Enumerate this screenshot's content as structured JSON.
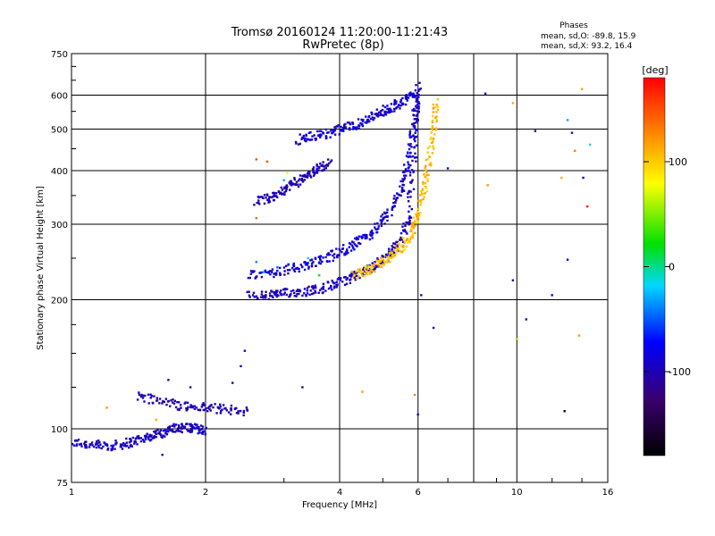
{
  "chart_data": {
    "type": "scatter",
    "title": "Tromsø 20160124 11:20:00-11:21:43",
    "subtitle": "RwPretec (8p)",
    "xlabel": "Frequency [MHz]",
    "ylabel": "Stationary phase Virtual Height [km]",
    "x_scale": "log",
    "y_scale": "log",
    "xlim": [
      1,
      16
    ],
    "ylim": [
      75,
      750
    ],
    "x_ticks": [
      "1",
      "2",
      "4",
      "6",
      "10",
      "16"
    ],
    "y_ticks": [
      "75",
      "100",
      "200",
      "300",
      "400",
      "500",
      "600",
      "750"
    ],
    "grid": true,
    "phase_stats": {
      "heading": "Phases",
      "line_o": "mean, sd,O: -89.8, 15.9",
      "line_x": "mean, sd,X:  93.2, 16.4"
    },
    "colorbar": {
      "label": "[deg]",
      "range": [
        -180,
        180
      ],
      "ticks": [
        "100",
        "0",
        "-100"
      ],
      "tick_values": [
        100,
        0,
        -100
      ]
    },
    "traces": [
      {
        "id": "E-layer",
        "phase": -95,
        "points": [
          [
            1.0,
            93
          ],
          [
            1.1,
            92
          ],
          [
            1.2,
            91
          ],
          [
            1.3,
            92
          ],
          [
            1.4,
            94
          ],
          [
            1.5,
            96
          ],
          [
            1.6,
            98
          ],
          [
            1.7,
            100
          ],
          [
            1.8,
            101
          ],
          [
            1.9,
            100
          ],
          [
            2.0,
            99
          ]
        ]
      },
      {
        "id": "Es",
        "phase": -100,
        "points": [
          [
            1.4,
            120
          ],
          [
            1.6,
            116
          ],
          [
            1.8,
            113
          ],
          [
            2.0,
            112
          ],
          [
            2.2,
            111
          ],
          [
            2.5,
            110
          ]
        ]
      },
      {
        "id": "F1-O",
        "phase": -95,
        "points": [
          [
            2.5,
            204
          ],
          [
            2.8,
            205
          ],
          [
            3.0,
            207
          ],
          [
            3.3,
            209
          ],
          [
            3.6,
            212
          ],
          [
            3.9,
            217
          ],
          [
            4.2,
            224
          ],
          [
            4.5,
            231
          ],
          [
            4.8,
            240
          ],
          [
            5.1,
            252
          ],
          [
            5.4,
            268
          ],
          [
            5.7,
            305
          ],
          [
            5.85,
            400
          ],
          [
            5.95,
            540
          ],
          [
            6.0,
            640
          ]
        ]
      },
      {
        "id": "F1-O-2",
        "phase": -90,
        "points": [
          [
            2.5,
            228
          ],
          [
            2.8,
            231
          ],
          [
            3.1,
            236
          ],
          [
            3.4,
            241
          ],
          [
            3.7,
            249
          ],
          [
            4.0,
            258
          ],
          [
            4.3,
            268
          ],
          [
            4.6,
            280
          ],
          [
            4.9,
            298
          ],
          [
            5.2,
            322
          ],
          [
            5.5,
            360
          ],
          [
            5.7,
            420
          ],
          [
            5.85,
            500
          ],
          [
            5.95,
            600
          ]
        ]
      },
      {
        "id": "F1-X",
        "phase": 105,
        "points": [
          [
            4.3,
            228
          ],
          [
            4.6,
            234
          ],
          [
            4.9,
            242
          ],
          [
            5.2,
            252
          ],
          [
            5.5,
            265
          ],
          [
            5.8,
            285
          ],
          [
            6.0,
            315
          ],
          [
            6.2,
            360
          ],
          [
            6.35,
            420
          ],
          [
            6.5,
            500
          ],
          [
            6.6,
            580
          ]
        ]
      },
      {
        "id": "F-upper",
        "phase": -90,
        "points": [
          [
            3.2,
            472
          ],
          [
            3.5,
            480
          ],
          [
            3.8,
            490
          ],
          [
            4.1,
            502
          ],
          [
            4.4,
            515
          ],
          [
            4.7,
            532
          ],
          [
            5.0,
            550
          ],
          [
            5.3,
            565
          ],
          [
            5.6,
            585
          ],
          [
            5.9,
            610
          ]
        ]
      },
      {
        "id": "F-upper-2",
        "phase": -100,
        "points": [
          [
            2.6,
            340
          ],
          [
            2.8,
            348
          ],
          [
            3.0,
            360
          ],
          [
            3.2,
            375
          ],
          [
            3.4,
            390
          ],
          [
            3.6,
            405
          ],
          [
            3.8,
            418
          ]
        ]
      }
    ],
    "scatter": [
      [
        2.6,
        245,
        -40
      ],
      [
        2.7,
        232,
        -30
      ],
      [
        2.9,
        238,
        -50
      ],
      [
        3.4,
        250,
        -20
      ],
      [
        3.6,
        228,
        10
      ],
      [
        3.3,
        125,
        -100
      ],
      [
        4.5,
        122,
        120
      ],
      [
        5.9,
        120,
        130
      ],
      [
        6.0,
        108,
        -90
      ],
      [
        6.1,
        205,
        -100
      ],
      [
        6.5,
        172,
        -100
      ],
      [
        7.0,
        405,
        -90
      ],
      [
        8.5,
        605,
        -100
      ],
      [
        8.6,
        370,
        120
      ],
      [
        9.8,
        575,
        110
      ],
      [
        9.8,
        222,
        -100
      ],
      [
        10.0,
        162,
        110
      ],
      [
        10.5,
        180,
        -100
      ],
      [
        11.0,
        495,
        -100
      ],
      [
        12.0,
        205,
        -100
      ],
      [
        12.6,
        385,
        110
      ],
      [
        13.0,
        248,
        -80
      ],
      [
        13.3,
        490,
        -100
      ],
      [
        13.5,
        445,
        130
      ],
      [
        13.8,
        165,
        120
      ],
      [
        14.0,
        620,
        120
      ],
      [
        14.1,
        385,
        -100
      ],
      [
        14.4,
        330,
        170
      ],
      [
        14.6,
        460,
        -20
      ],
      [
        13.0,
        525,
        -30
      ],
      [
        12.8,
        110,
        -170
      ],
      [
        2.3,
        128,
        -100
      ],
      [
        2.4,
        140,
        -100
      ],
      [
        2.45,
        152,
        -90
      ],
      [
        1.65,
        130,
        -100
      ],
      [
        1.85,
        125,
        -100
      ],
      [
        1.55,
        105,
        110
      ],
      [
        1.6,
        87,
        -100
      ],
      [
        1.35,
        93,
        -100
      ],
      [
        1.2,
        112,
        120
      ],
      [
        2.6,
        425,
        150
      ],
      [
        2.75,
        420,
        150
      ],
      [
        3.05,
        395,
        80
      ],
      [
        3.0,
        380,
        -30
      ],
      [
        2.6,
        310,
        140
      ],
      [
        3.9,
        505,
        -100
      ],
      [
        5.95,
        480,
        -90
      ]
    ]
  }
}
